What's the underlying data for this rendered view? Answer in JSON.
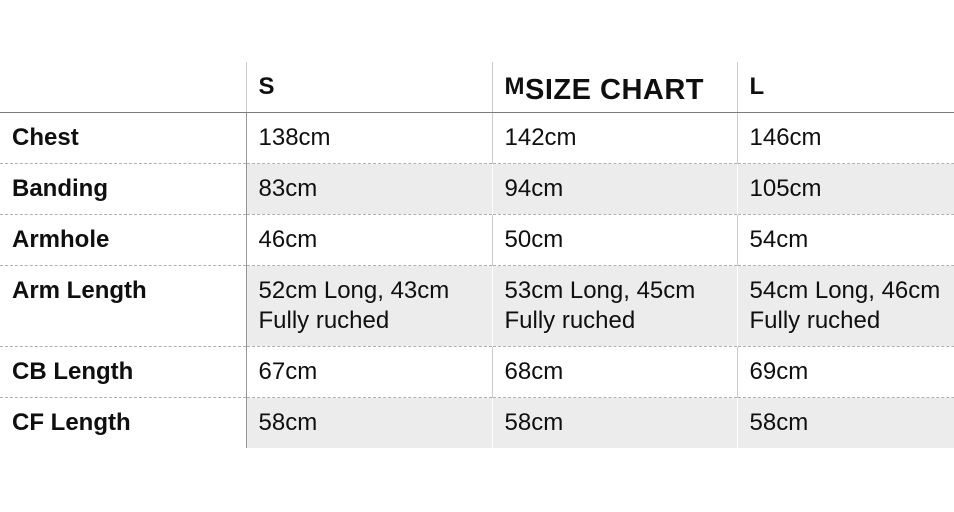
{
  "title": "SIZE CHART",
  "table": {
    "columns": [
      "S",
      "M",
      "L"
    ],
    "rows": [
      {
        "label": "Chest",
        "values": [
          "138cm",
          "142cm",
          "146cm"
        ]
      },
      {
        "label": "Banding",
        "values": [
          "83cm",
          "94cm",
          "105cm"
        ]
      },
      {
        "label": "Armhole",
        "values": [
          "46cm",
          "50cm",
          "54cm"
        ]
      },
      {
        "label": "Arm Length",
        "values": [
          "52cm Long, 43cm Fully ruched",
          "53cm Long, 45cm Fully ruched",
          "54cm Long, 46cm Fully ruched"
        ]
      },
      {
        "label": "CB Length",
        "values": [
          "67cm",
          "68cm",
          "69cm"
        ]
      },
      {
        "label": "CF Length",
        "values": [
          "58cm",
          "58cm",
          "58cm"
        ]
      }
    ]
  },
  "colors": {
    "stripe_background": "#ececec",
    "header_rule": "#7b7b7b",
    "row_divider_dashed": "#b0b0b0",
    "column_divider_dark": "#979797",
    "column_divider_light": "#cccccc",
    "text": "#0f0f0f"
  }
}
